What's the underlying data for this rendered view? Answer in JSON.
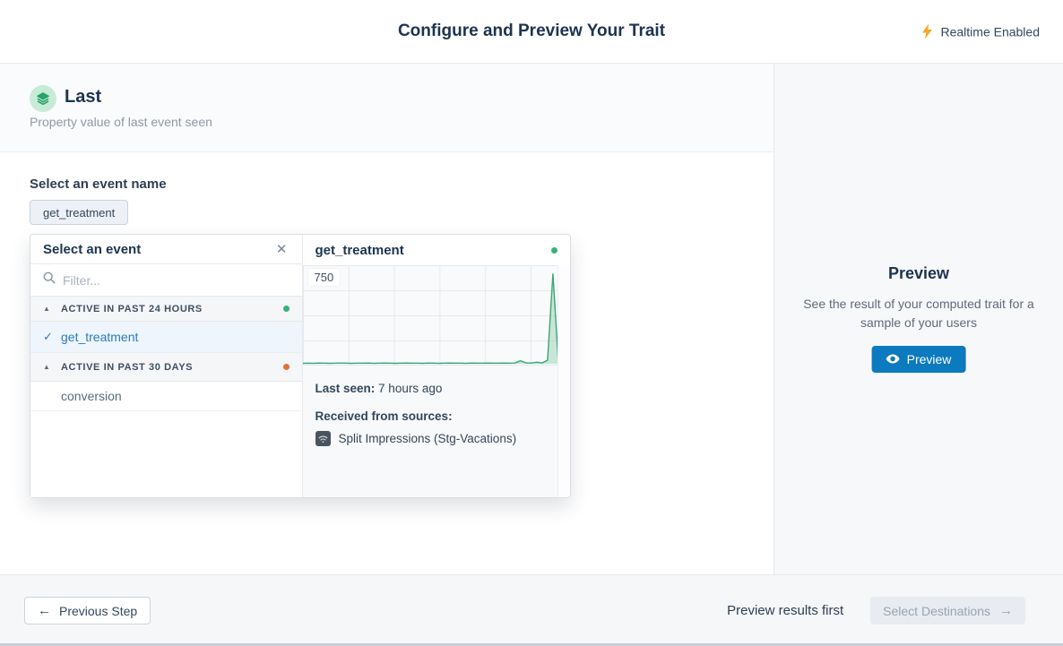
{
  "header": {
    "title": "Configure and Preview Your Trait",
    "realtime_label": "Realtime Enabled"
  },
  "trait": {
    "name": "Last",
    "description": "Property value of last event seen"
  },
  "event_select": {
    "label": "Select an event name",
    "selected_chip": "get_treatment"
  },
  "event_picker": {
    "title": "Select an event",
    "filter_placeholder": "Filter...",
    "groups": [
      {
        "label": "ACTIVE IN PAST 24 HOURS",
        "status_color": "#36b475"
      },
      {
        "label": "ACTIVE IN PAST 30 DAYS",
        "status_color": "#e2703a"
      }
    ],
    "items": [
      {
        "label": "get_treatment",
        "group": 0,
        "selected": true
      },
      {
        "label": "conversion",
        "group": 1,
        "selected": false
      }
    ]
  },
  "event_detail": {
    "title": "get_treatment",
    "status_color": "#36b475",
    "last_seen_label": "Last seen:",
    "last_seen_value": "7 hours ago",
    "sources_label": "Received from sources:",
    "source_name": "Split Impressions (Stg-Vacations)"
  },
  "chart_data": {
    "type": "area",
    "title": "get_treatment event volume",
    "xlabel": "",
    "ylabel": "",
    "top_tick_label": "750",
    "ylim": [
      0,
      800
    ],
    "grid": true,
    "legend": false,
    "series": [
      {
        "name": "get_treatment",
        "values": [
          4,
          5,
          4,
          6,
          5,
          4,
          5,
          6,
          5,
          4,
          5,
          5,
          6,
          4,
          5,
          6,
          5,
          4,
          5,
          6,
          5,
          5,
          4,
          6,
          5,
          4,
          5,
          6,
          5,
          5,
          4,
          6,
          5,
          5,
          6,
          5,
          5,
          6,
          5,
          6,
          26,
          8,
          6,
          13,
          7,
          30,
          760,
          8
        ]
      }
    ]
  },
  "preview_panel": {
    "title": "Preview",
    "description": "See the result of your computed trait for a sample of your users",
    "button_label": "Preview"
  },
  "footer": {
    "previous_label": "Previous Step",
    "hint": "Preview results first",
    "next_label": "Select Destinations",
    "next_enabled": false
  },
  "colors": {
    "accent_blue": "#0c7abf",
    "chart_green": "#3aa876",
    "chart_fill": "rgba(76,175,125,0.28)",
    "status_green": "#36b475",
    "status_orange": "#e2703a",
    "navy": "#1d3450",
    "bolt_yellow": "#f6a62a"
  }
}
